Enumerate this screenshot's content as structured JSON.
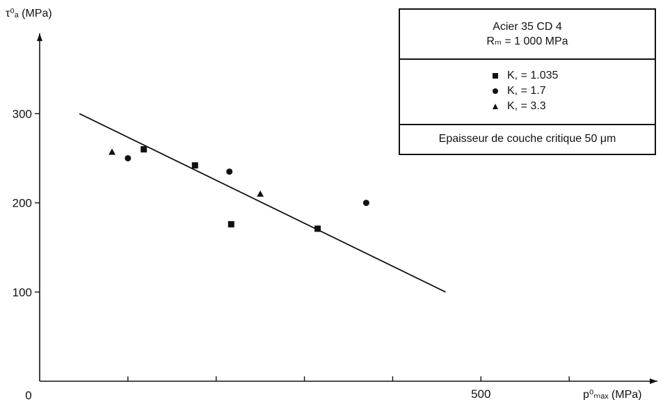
{
  "chart_data": {
    "type": "scatter",
    "ylabel": "τ⁰ₐ (MPa)",
    "xlabel": "p⁰ₘₐₓ (MPa)",
    "origin_label": "0",
    "xlim": [
      0,
      700
    ],
    "ylim": [
      0,
      390
    ],
    "y_ticks": [
      100,
      200,
      300
    ],
    "x_ticks": [
      100,
      200,
      300,
      400,
      500,
      600
    ],
    "x_tick_labels": [
      "",
      "",
      "",
      "",
      "500",
      ""
    ],
    "series": [
      {
        "name": "K, = 1.035",
        "marker": "square",
        "x": [
          118,
          176,
          217,
          315
        ],
        "y": [
          260,
          242,
          176,
          171
        ]
      },
      {
        "name": "K, = 1.7",
        "marker": "circle",
        "x": [
          100,
          215,
          370
        ],
        "y": [
          250,
          235,
          200
        ]
      },
      {
        "name": "K, = 3.3",
        "marker": "triangle",
        "x": [
          82,
          250
        ],
        "y": [
          257,
          210
        ]
      }
    ],
    "trend_line": {
      "x": [
        45,
        460
      ],
      "y": [
        300,
        100
      ]
    },
    "legend": {
      "title_line1": "Acier 35 CD 4",
      "title_line2": "Rₘ = 1 000 MPa",
      "footer": "Epaisseur de couche critique   50 μm",
      "placement": "top-right"
    }
  }
}
